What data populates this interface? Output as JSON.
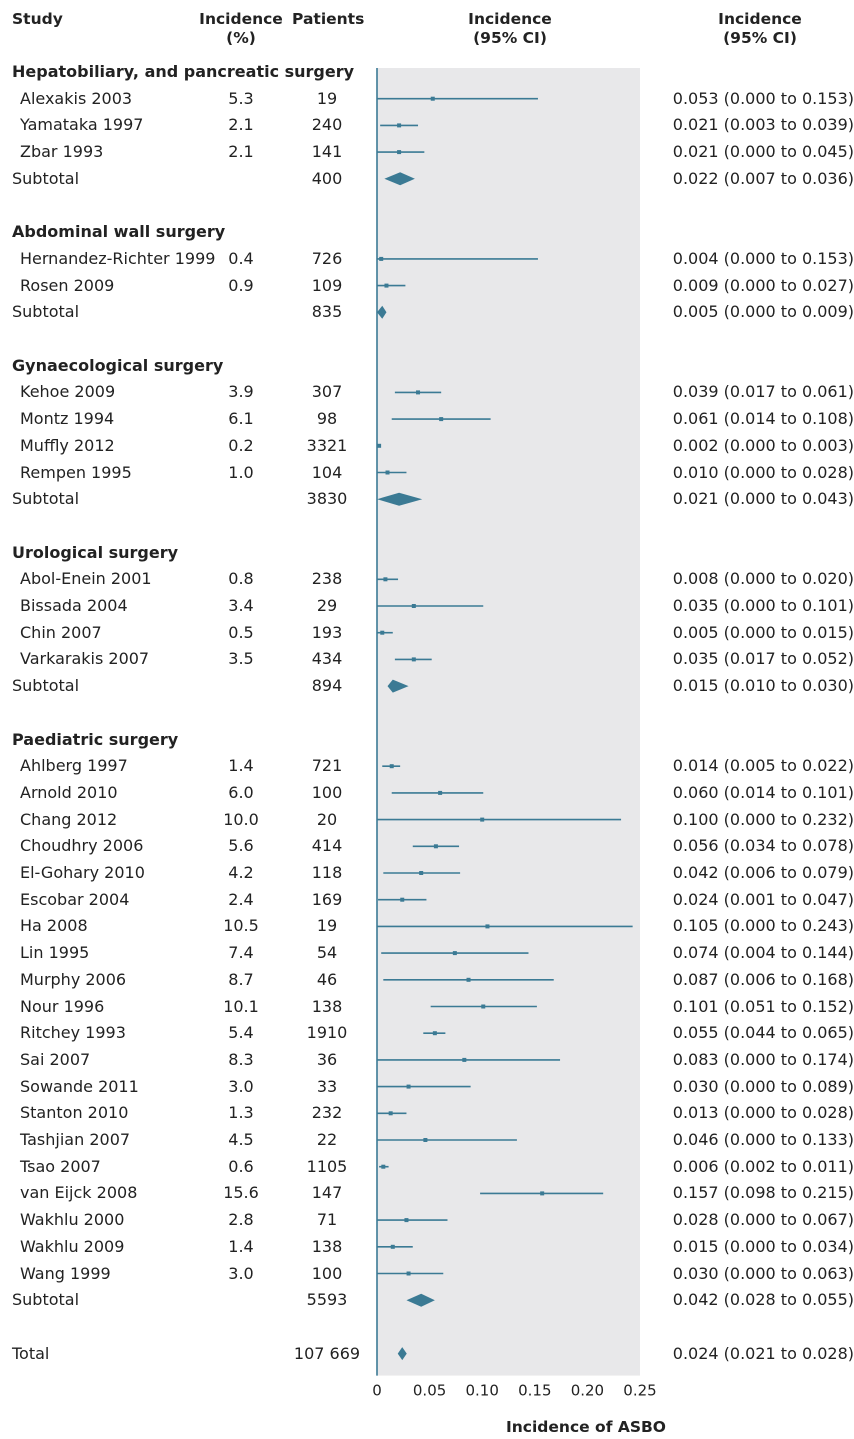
{
  "headers": {
    "study": "Study",
    "incidence_pct": "Incidence\n(%)",
    "patients": "Patients",
    "plot": "Incidence\n(95% CI)",
    "ci": "Incidence\n(95% CI)"
  },
  "colors": {
    "marker": "#3b7a94",
    "panel": "#e8e8ea",
    "axis": "#3b7a94"
  },
  "chart_data": {
    "type": "forest",
    "xlabel": "Incidence of ASBO",
    "xlim": [
      0,
      0.25
    ],
    "xticks": [
      "0",
      "0.05",
      "0.10",
      "0.15",
      "0.20",
      "0.25"
    ],
    "xtick_values": [
      0,
      0.05,
      0.1,
      0.15,
      0.2,
      0.25
    ],
    "rows": [
      {
        "kind": "section",
        "label": "Hepatobiliary, and pancreatic surgery"
      },
      {
        "kind": "study",
        "label": "Alexakis 2003",
        "pct": "5.3",
        "patients": "19",
        "est": 0.053,
        "lo": 0.0,
        "hi": 0.153,
        "ci_text": "0.053 (0.000 to 0.153)"
      },
      {
        "kind": "study",
        "label": "Yamataka 1997",
        "pct": "2.1",
        "patients": "240",
        "est": 0.021,
        "lo": 0.003,
        "hi": 0.039,
        "ci_text": "0.021 (0.003 to 0.039)"
      },
      {
        "kind": "study",
        "label": "Zbar 1993",
        "pct": "2.1",
        "patients": "141",
        "est": 0.021,
        "lo": 0.0,
        "hi": 0.045,
        "ci_text": "0.021 (0.000 to 0.045)"
      },
      {
        "kind": "subtotal",
        "label": "Subtotal",
        "patients": "400",
        "est": 0.022,
        "lo": 0.007,
        "hi": 0.036,
        "ci_text": "0.022 (0.007 to 0.036)"
      },
      {
        "kind": "blank"
      },
      {
        "kind": "section",
        "label": "Abdominal wall surgery"
      },
      {
        "kind": "study",
        "label": "Hernandez-Richter 1999",
        "pct": "0.4",
        "patients": "726",
        "est": 0.004,
        "lo": 0.0,
        "hi": 0.153,
        "ci_text": "0.004 (0.000 to 0.153)"
      },
      {
        "kind": "study",
        "label": "Rosen 2009",
        "pct": "0.9",
        "patients": "109",
        "est": 0.009,
        "lo": 0.0,
        "hi": 0.027,
        "ci_text": "0.009 (0.000 to 0.027)"
      },
      {
        "kind": "subtotal",
        "label": "Subtotal",
        "patients": "835",
        "est": 0.005,
        "lo": 0.0,
        "hi": 0.009,
        "ci_text": "0.005 (0.000 to 0.009)"
      },
      {
        "kind": "blank"
      },
      {
        "kind": "section",
        "label": "Gynaecological surgery"
      },
      {
        "kind": "study",
        "label": "Kehoe 2009",
        "pct": "3.9",
        "patients": "307",
        "est": 0.039,
        "lo": 0.017,
        "hi": 0.061,
        "ci_text": "0.039 (0.017 to 0.061)"
      },
      {
        "kind": "study",
        "label": "Montz 1994",
        "pct": "6.1",
        "patients": "98",
        "est": 0.061,
        "lo": 0.014,
        "hi": 0.108,
        "ci_text": "0.061 (0.014 to 0.108)"
      },
      {
        "kind": "study",
        "label": "Muffly 2012",
        "pct": "0.2",
        "patients": "3321",
        "est": 0.002,
        "lo": 0.0,
        "hi": 0.003,
        "ci_text": "0.002 (0.000 to 0.003)"
      },
      {
        "kind": "study",
        "label": "Rempen 1995",
        "pct": "1.0",
        "patients": "104",
        "est": 0.01,
        "lo": 0.0,
        "hi": 0.028,
        "ci_text": "0.010 (0.000 to 0.028)"
      },
      {
        "kind": "subtotal",
        "label": "Subtotal",
        "patients": "3830",
        "est": 0.021,
        "lo": 0.0,
        "hi": 0.043,
        "ci_text": "0.021 (0.000 to 0.043)"
      },
      {
        "kind": "blank"
      },
      {
        "kind": "section",
        "label": "Urological surgery"
      },
      {
        "kind": "study",
        "label": "Abol-Enein 2001",
        "pct": "0.8",
        "patients": "238",
        "est": 0.008,
        "lo": 0.0,
        "hi": 0.02,
        "ci_text": "0.008 (0.000 to 0.020)"
      },
      {
        "kind": "study",
        "label": "Bissada 2004",
        "pct": "3.4",
        "patients": "29",
        "est": 0.035,
        "lo": 0.0,
        "hi": 0.101,
        "ci_text": "0.035 (0.000 to 0.101)"
      },
      {
        "kind": "study",
        "label": "Chin 2007",
        "pct": "0.5",
        "patients": "193",
        "est": 0.005,
        "lo": 0.0,
        "hi": 0.015,
        "ci_text": "0.005 (0.000 to 0.015)"
      },
      {
        "kind": "study",
        "label": "Varkarakis 2007",
        "pct": "3.5",
        "patients": "434",
        "est": 0.035,
        "lo": 0.017,
        "hi": 0.052,
        "ci_text": "0.035 (0.017 to 0.052)"
      },
      {
        "kind": "subtotal",
        "label": "Subtotal",
        "patients": "894",
        "est": 0.015,
        "lo": 0.01,
        "hi": 0.03,
        "ci_text": "0.015 (0.010 to 0.030)"
      },
      {
        "kind": "blank"
      },
      {
        "kind": "section",
        "label": "Paediatric surgery"
      },
      {
        "kind": "study",
        "label": "Ahlberg 1997",
        "pct": "1.4",
        "patients": "721",
        "est": 0.014,
        "lo": 0.005,
        "hi": 0.022,
        "ci_text": "0.014 (0.005 to 0.022)"
      },
      {
        "kind": "study",
        "label": "Arnold 2010",
        "pct": "6.0",
        "patients": "100",
        "est": 0.06,
        "lo": 0.014,
        "hi": 0.101,
        "ci_text": "0.060 (0.014 to 0.101)"
      },
      {
        "kind": "study",
        "label": "Chang 2012",
        "pct": "10.0",
        "patients": "20",
        "est": 0.1,
        "lo": 0.0,
        "hi": 0.232,
        "ci_text": "0.100 (0.000 to 0.232)"
      },
      {
        "kind": "study",
        "label": "Choudhry 2006",
        "pct": "5.6",
        "patients": "414",
        "est": 0.056,
        "lo": 0.034,
        "hi": 0.078,
        "ci_text": "0.056 (0.034 to 0.078)"
      },
      {
        "kind": "study",
        "label": "El-Gohary 2010",
        "pct": "4.2",
        "patients": "118",
        "est": 0.042,
        "lo": 0.006,
        "hi": 0.079,
        "ci_text": "0.042 (0.006 to 0.079)"
      },
      {
        "kind": "study",
        "label": "Escobar 2004",
        "pct": "2.4",
        "patients": "169",
        "est": 0.024,
        "lo": 0.001,
        "hi": 0.047,
        "ci_text": "0.024 (0.001 to 0.047)"
      },
      {
        "kind": "study",
        "label": "Ha 2008",
        "pct": "10.5",
        "patients": "19",
        "est": 0.105,
        "lo": 0.0,
        "hi": 0.243,
        "ci_text": "0.105 (0.000 to 0.243)"
      },
      {
        "kind": "study",
        "label": "Lin 1995",
        "pct": "7.4",
        "patients": "54",
        "est": 0.074,
        "lo": 0.004,
        "hi": 0.144,
        "ci_text": "0.074 (0.004 to 0.144)"
      },
      {
        "kind": "study",
        "label": "Murphy 2006",
        "pct": "8.7",
        "patients": "46",
        "est": 0.087,
        "lo": 0.006,
        "hi": 0.168,
        "ci_text": "0.087 (0.006 to 0.168)"
      },
      {
        "kind": "study",
        "label": "Nour 1996",
        "pct": "10.1",
        "patients": "138",
        "est": 0.101,
        "lo": 0.051,
        "hi": 0.152,
        "ci_text": "0.101 (0.051 to 0.152)"
      },
      {
        "kind": "study",
        "label": "Ritchey 1993",
        "pct": "5.4",
        "patients": "1910",
        "est": 0.055,
        "lo": 0.044,
        "hi": 0.065,
        "ci_text": "0.055 (0.044 to 0.065)"
      },
      {
        "kind": "study",
        "label": "Sai 2007",
        "pct": "8.3",
        "patients": "36",
        "est": 0.083,
        "lo": 0.0,
        "hi": 0.174,
        "ci_text": "0.083 (0.000 to 0.174)"
      },
      {
        "kind": "study",
        "label": "Sowande 2011",
        "pct": "3.0",
        "patients": "33",
        "est": 0.03,
        "lo": 0.0,
        "hi": 0.089,
        "ci_text": "0.030 (0.000 to 0.089)"
      },
      {
        "kind": "study",
        "label": "Stanton 2010",
        "pct": "1.3",
        "patients": "232",
        "est": 0.013,
        "lo": 0.0,
        "hi": 0.028,
        "ci_text": "0.013 (0.000 to 0.028)"
      },
      {
        "kind": "study",
        "label": "Tashjian 2007",
        "pct": "4.5",
        "patients": "22",
        "est": 0.046,
        "lo": 0.0,
        "hi": 0.133,
        "ci_text": "0.046 (0.000 to 0.133)"
      },
      {
        "kind": "study",
        "label": "Tsao 2007",
        "pct": "0.6",
        "patients": "1105",
        "est": 0.006,
        "lo": 0.002,
        "hi": 0.011,
        "ci_text": "0.006 (0.002 to 0.011)"
      },
      {
        "kind": "study",
        "label": "van Eijck 2008",
        "pct": "15.6",
        "patients": "147",
        "est": 0.157,
        "lo": 0.098,
        "hi": 0.215,
        "ci_text": "0.157 (0.098 to 0.215)"
      },
      {
        "kind": "study",
        "label": "Wakhlu 2000",
        "pct": "2.8",
        "patients": "71",
        "est": 0.028,
        "lo": 0.0,
        "hi": 0.067,
        "ci_text": "0.028 (0.000 to 0.067)"
      },
      {
        "kind": "study",
        "label": "Wakhlu 2009",
        "pct": "1.4",
        "patients": "138",
        "est": 0.015,
        "lo": 0.0,
        "hi": 0.034,
        "ci_text": "0.015 (0.000 to 0.034)"
      },
      {
        "kind": "study",
        "label": "Wang 1999",
        "pct": "3.0",
        "patients": "100",
        "est": 0.03,
        "lo": 0.0,
        "hi": 0.063,
        "ci_text": "0.030 (0.000 to 0.063)"
      },
      {
        "kind": "subtotal",
        "label": "Subtotal",
        "patients": "5593",
        "est": 0.042,
        "lo": 0.028,
        "hi": 0.055,
        "ci_text": "0.042 (0.028 to 0.055)"
      },
      {
        "kind": "blank"
      },
      {
        "kind": "total",
        "label": "Total",
        "patients": "107 669",
        "est": 0.024,
        "lo": 0.021,
        "hi": 0.028,
        "ci_text": "0.024 (0.021 to 0.028)"
      }
    ]
  }
}
